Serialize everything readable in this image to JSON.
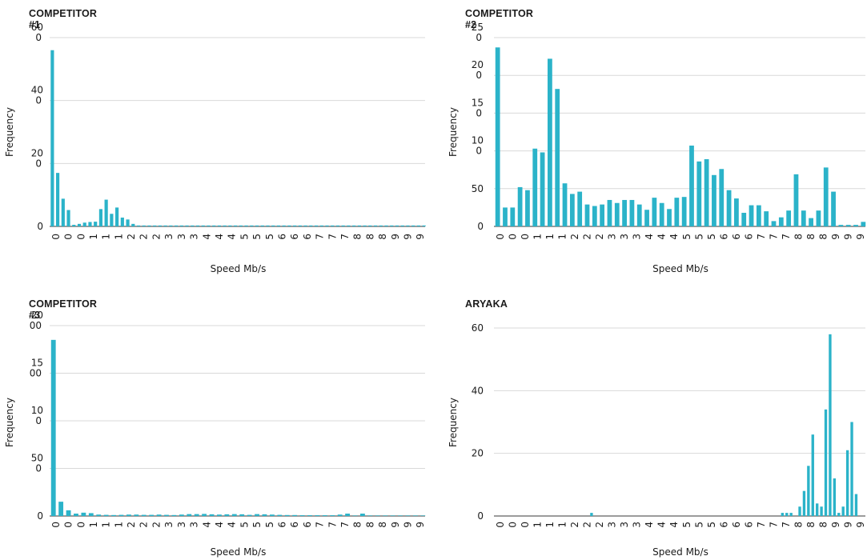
{
  "chart_data": [
    {
      "type": "bar",
      "title": "COMPETITOR #1",
      "xlabel": "Speed Mb/s",
      "ylabel": "Frequency",
      "ylim": [
        0,
        600
      ],
      "y_ticks": [
        {
          "value": 0,
          "lines": [
            "0"
          ]
        },
        {
          "value": 200,
          "lines": [
            "20",
            "0"
          ]
        },
        {
          "value": 400,
          "lines": [
            "40",
            "0"
          ]
        },
        {
          "value": 600,
          "lines": [
            "60",
            "0"
          ]
        }
      ],
      "x_tick_labels": [
        "0",
        "0",
        "0",
        "1",
        "1",
        "1",
        "2",
        "2",
        "2",
        "3",
        "3",
        "3",
        "4",
        "4",
        "4",
        "5",
        "5",
        "5",
        "6",
        "6",
        "6",
        "7",
        "7",
        "7",
        "8",
        "8",
        "8",
        "9",
        "9",
        "9"
      ],
      "values": [
        560,
        170,
        88,
        52,
        5,
        8,
        12,
        14,
        15,
        55,
        85,
        40,
        60,
        28,
        22,
        8,
        3,
        3,
        3,
        3,
        3,
        3,
        3,
        3,
        3,
        3,
        3,
        3,
        3,
        3,
        3,
        3,
        3,
        3,
        3,
        3,
        3,
        3,
        3,
        3,
        3,
        3,
        3,
        3,
        3,
        3,
        3,
        3,
        3,
        3,
        3,
        3,
        3,
        3,
        3,
        3,
        3,
        3,
        3,
        3,
        3,
        3,
        3,
        3,
        3,
        3,
        3,
        3,
        3,
        3
      ],
      "color": "#2bb3c9",
      "grid": true
    },
    {
      "type": "bar",
      "title": "COMPETITOR #2",
      "xlabel": "Speed Mb/s",
      "ylabel": "Frequency",
      "ylim": [
        0,
        250
      ],
      "y_ticks": [
        {
          "value": 0,
          "lines": [
            "0"
          ]
        },
        {
          "value": 50,
          "lines": [
            "50"
          ]
        },
        {
          "value": 100,
          "lines": [
            "10",
            "0"
          ]
        },
        {
          "value": 150,
          "lines": [
            "15",
            "0"
          ]
        },
        {
          "value": 200,
          "lines": [
            "20",
            "0"
          ]
        },
        {
          "value": 250,
          "lines": [
            "25",
            "0"
          ]
        }
      ],
      "x_tick_labels": [
        "0",
        "0",
        "0",
        "1",
        "1",
        "1",
        "2",
        "2",
        "2",
        "3",
        "3",
        "3",
        "4",
        "4",
        "4",
        "5",
        "5",
        "5",
        "6",
        "6",
        "6",
        "7",
        "7",
        "7",
        "8",
        "8",
        "8",
        "9",
        "9",
        "9"
      ],
      "values": [
        237,
        25,
        25,
        52,
        48,
        103,
        98,
        222,
        182,
        57,
        43,
        46,
        29,
        27,
        29,
        35,
        31,
        35,
        35,
        29,
        22,
        38,
        31,
        23,
        38,
        39,
        107,
        86,
        89,
        68,
        76,
        48,
        37,
        18,
        28,
        28,
        20,
        7,
        12,
        21,
        69,
        21,
        11,
        21,
        78,
        46,
        2,
        2,
        2,
        6
      ],
      "color": "#2bb3c9",
      "grid": true
    },
    {
      "type": "bar",
      "title": "COMPETITOR #3",
      "xlabel": "Speed Mb/s",
      "ylabel": "Frequency",
      "ylim": [
        0,
        2000
      ],
      "y_ticks": [
        {
          "value": 0,
          "lines": [
            "0"
          ]
        },
        {
          "value": 500,
          "lines": [
            "50",
            "0"
          ]
        },
        {
          "value": 1000,
          "lines": [
            "10",
            "0"
          ]
        },
        {
          "value": 1500,
          "lines": [
            "15",
            "00"
          ]
        },
        {
          "value": 2000,
          "lines": [
            "20",
            "00"
          ]
        }
      ],
      "x_tick_labels": [
        "0",
        "0",
        "0",
        "1",
        "1",
        "1",
        "2",
        "2",
        "2",
        "3",
        "3",
        "3",
        "4",
        "4",
        "4",
        "5",
        "5",
        "5",
        "6",
        "6",
        "6",
        "7",
        "7",
        "7",
        "8",
        "8",
        "8",
        "9",
        "9",
        "9"
      ],
      "values": [
        1850,
        150,
        60,
        25,
        35,
        30,
        15,
        12,
        10,
        12,
        15,
        15,
        12,
        12,
        15,
        12,
        10,
        15,
        20,
        20,
        22,
        18,
        15,
        18,
        20,
        18,
        12,
        20,
        18,
        15,
        12,
        10,
        10,
        8,
        8,
        8,
        8,
        8,
        15,
        25,
        5,
        25,
        5,
        5,
        5,
        5,
        5,
        5,
        5,
        5
      ],
      "color": "#2bb3c9",
      "grid": true
    },
    {
      "type": "bar",
      "title": "ARYAKA",
      "xlabel": "Speed Mb/s",
      "ylabel": "Frequency",
      "ylim": [
        0,
        60
      ],
      "y_ticks": [
        {
          "value": 0,
          "lines": [
            "0"
          ]
        },
        {
          "value": 20,
          "lines": [
            "20"
          ]
        },
        {
          "value": 40,
          "lines": [
            "40"
          ]
        },
        {
          "value": 60,
          "lines": [
            "60"
          ]
        }
      ],
      "x_tick_labels": [
        "0",
        "0",
        "0",
        "1",
        "1",
        "1",
        "2",
        "2",
        "2",
        "3",
        "3",
        "3",
        "4",
        "4",
        "4",
        "5",
        "5",
        "5",
        "6",
        "6",
        "6",
        "7",
        "7",
        "7",
        "8",
        "8",
        "8",
        "9",
        "9",
        "9"
      ],
      "values": [
        0,
        0,
        0,
        0,
        0,
        0,
        0,
        0,
        0,
        0,
        0,
        0,
        0,
        0,
        0,
        0,
        0,
        0,
        0,
        0,
        0,
        0,
        1,
        0,
        0,
        0,
        0,
        0,
        0,
        0,
        0,
        0,
        0,
        0,
        0,
        0,
        0,
        0,
        0,
        0,
        0,
        0,
        0,
        0,
        0,
        0,
        0,
        0,
        0,
        0,
        0,
        0,
        0,
        0,
        0,
        0,
        0,
        0,
        0,
        0,
        0,
        0,
        0,
        0,
        0,
        0,
        1,
        1,
        1,
        0,
        3,
        8,
        16,
        26,
        4,
        3,
        34,
        58,
        12,
        1,
        3,
        21,
        30,
        7,
        0,
        0
      ],
      "color": "#2bb3c9",
      "grid": true
    }
  ]
}
